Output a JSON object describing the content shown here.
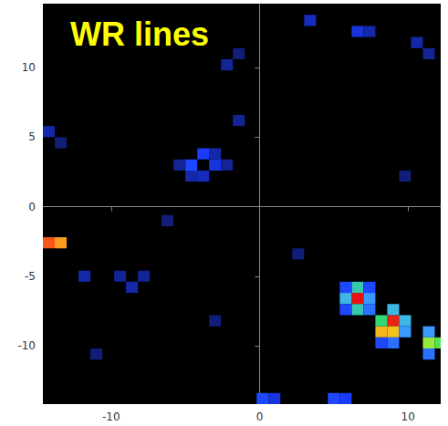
{
  "chart_data": {
    "type": "heatmap",
    "title": "WR lines",
    "xlim": [
      -14.6,
      12.2
    ],
    "ylim": [
      -14.2,
      14.6
    ],
    "xticks": [
      -10,
      0,
      10
    ],
    "yticks": [
      -10,
      -5,
      0,
      5,
      10
    ],
    "cell_size": 0.8,
    "zlim": [
      0,
      1
    ],
    "cells": [
      [
        -14.2,
        -2.6,
        0.92
      ],
      [
        -13.4,
        -2.6,
        0.84
      ],
      [
        6.6,
        -6.6,
        1.0
      ],
      [
        6.6,
        -5.8,
        0.5
      ],
      [
        6.6,
        -7.4,
        0.5
      ],
      [
        5.8,
        -6.6,
        0.45
      ],
      [
        7.4,
        -6.6,
        0.4
      ],
      [
        5.8,
        -5.8,
        0.3
      ],
      [
        7.4,
        -5.8,
        0.3
      ],
      [
        5.8,
        -7.4,
        0.3
      ],
      [
        7.4,
        -7.4,
        0.35
      ],
      [
        9.0,
        -8.2,
        0.98
      ],
      [
        8.2,
        -9.0,
        0.8
      ],
      [
        9.0,
        -9.0,
        0.78
      ],
      [
        8.2,
        -8.2,
        0.55
      ],
      [
        9.8,
        -8.2,
        0.45
      ],
      [
        9.0,
        -7.4,
        0.45
      ],
      [
        9.8,
        -9.0,
        0.4
      ],
      [
        9.0,
        -9.8,
        0.35
      ],
      [
        8.2,
        -9.8,
        0.3
      ],
      [
        11.4,
        -9.8,
        0.65
      ],
      [
        11.4,
        -9.0,
        0.4
      ],
      [
        11.4,
        -10.6,
        0.35
      ],
      [
        12.2,
        -9.8,
        0.6
      ],
      [
        -4.6,
        3.0,
        0.3
      ],
      [
        -3.8,
        3.8,
        0.28
      ],
      [
        -3.0,
        3.0,
        0.25
      ],
      [
        -3.8,
        2.2,
        0.22
      ],
      [
        -4.6,
        2.2,
        0.2
      ],
      [
        -3.0,
        3.8,
        0.2
      ],
      [
        -2.2,
        3.0,
        0.18
      ],
      [
        -5.4,
        3.0,
        0.18
      ],
      [
        -14.2,
        5.4,
        0.2
      ],
      [
        -13.4,
        4.6,
        0.15
      ],
      [
        3.4,
        13.4,
        0.22
      ],
      [
        6.6,
        12.6,
        0.25
      ],
      [
        7.4,
        12.6,
        0.2
      ],
      [
        10.6,
        11.8,
        0.2
      ],
      [
        11.4,
        11.0,
        0.18
      ],
      [
        -2.2,
        10.2,
        0.18
      ],
      [
        -1.4,
        11.0,
        0.15
      ],
      [
        -11.8,
        -5.0,
        0.2
      ],
      [
        -9.4,
        -5.0,
        0.18
      ],
      [
        -8.6,
        -5.8,
        0.2
      ],
      [
        -7.8,
        -5.0,
        0.18
      ],
      [
        -11.0,
        -10.6,
        0.15
      ],
      [
        -3.0,
        -8.2,
        0.15
      ],
      [
        0.2,
        -13.8,
        0.3
      ],
      [
        1.0,
        -13.8,
        0.25
      ],
      [
        5.0,
        -13.8,
        0.3
      ],
      [
        5.8,
        -13.8,
        0.28
      ],
      [
        2.6,
        -3.4,
        0.15
      ],
      [
        9.8,
        2.2,
        0.15
      ],
      [
        -6.2,
        -1.0,
        0.15
      ],
      [
        -1.4,
        6.2,
        0.18
      ]
    ]
  }
}
